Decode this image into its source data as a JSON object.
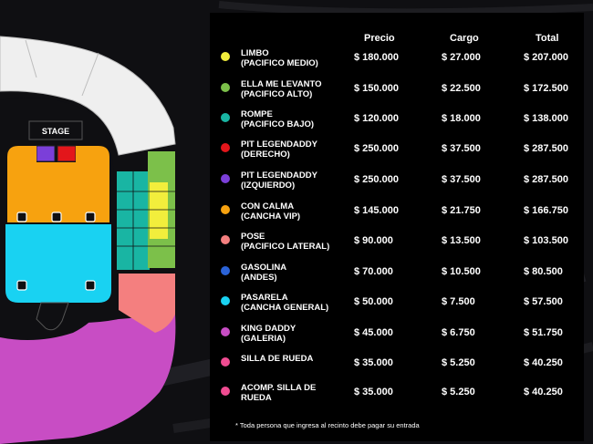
{
  "map": {
    "stage_label": "STAGE"
  },
  "table": {
    "headers": {
      "precio": "Precio",
      "cargo": "Cargo",
      "total": "Total"
    },
    "rows": [
      {
        "line1": "LIMBO",
        "line2": "(PACIFICO MEDIO)",
        "precio": "$ 180.000",
        "cargo": "$ 27.000",
        "total": "$ 207.000",
        "color": "#f2ee3c"
      },
      {
        "line1": "ELLA ME LEVANTO",
        "line2": "(PACIFICO ALTO)",
        "precio": "$ 150.000",
        "cargo": "$ 22.500",
        "total": "$ 172.500",
        "color": "#7cc04a"
      },
      {
        "line1": "ROMPE",
        "line2": "(PACIFICO BAJO)",
        "precio": "$ 120.000",
        "cargo": "$ 18.000",
        "total": "$ 138.000",
        "color": "#19b5a3"
      },
      {
        "line1": "PIT LEGENDADDY",
        "line2": "(DERECHO)",
        "precio": "$ 250.000",
        "cargo": "$ 37.500",
        "total": "$ 287.500",
        "color": "#e3161b"
      },
      {
        "line1": "PIT LEGENDADDY",
        "line2": "(IZQUIERDO)",
        "precio": "$ 250.000",
        "cargo": "$ 37.500",
        "total": "$ 287.500",
        "color": "#7b3fd9"
      },
      {
        "line1": "CON CALMA",
        "line2": "(CANCHA VIP)",
        "precio": "$ 145.000",
        "cargo": "$ 21.750",
        "total": "$ 166.750",
        "color": "#f7a20f"
      },
      {
        "line1": "POSE",
        "line2": "(PACIFICO LATERAL)",
        "precio": "$ 90.000",
        "cargo": "$ 13.500",
        "total": "$ 103.500",
        "color": "#f47f7f"
      },
      {
        "line1": "GASOLINA",
        "line2": "(ANDES)",
        "precio": "$ 70.000",
        "cargo": "$ 10.500",
        "total": "$ 80.500",
        "color": "#2b63d8"
      },
      {
        "line1": "PASARELA",
        "line2": "(CANCHA GENERAL)",
        "precio": "$ 50.000",
        "cargo": "$ 7.500",
        "total": "$ 57.500",
        "color": "#19d2f2"
      },
      {
        "line1": "KING DADDY",
        "line2": "(GALERIA)",
        "precio": "$ 45.000",
        "cargo": "$ 6.750",
        "total": "$ 51.750",
        "color": "#c84dc4"
      },
      {
        "line1": "SILLA DE RUEDA",
        "line2": "",
        "precio": "$ 35.000",
        "cargo": "$ 5.250",
        "total": "$ 40.250",
        "color": "#f04c92"
      },
      {
        "line1": "ACOMP. SILLA DE",
        "line2": "RUEDA",
        "precio": "$ 35.000",
        "cargo": "$ 5.250",
        "total": "$ 40.250",
        "color": "#f04c92"
      }
    ],
    "footnote": "*  Toda persona que ingresa al recinto debe pagar su entrada"
  }
}
